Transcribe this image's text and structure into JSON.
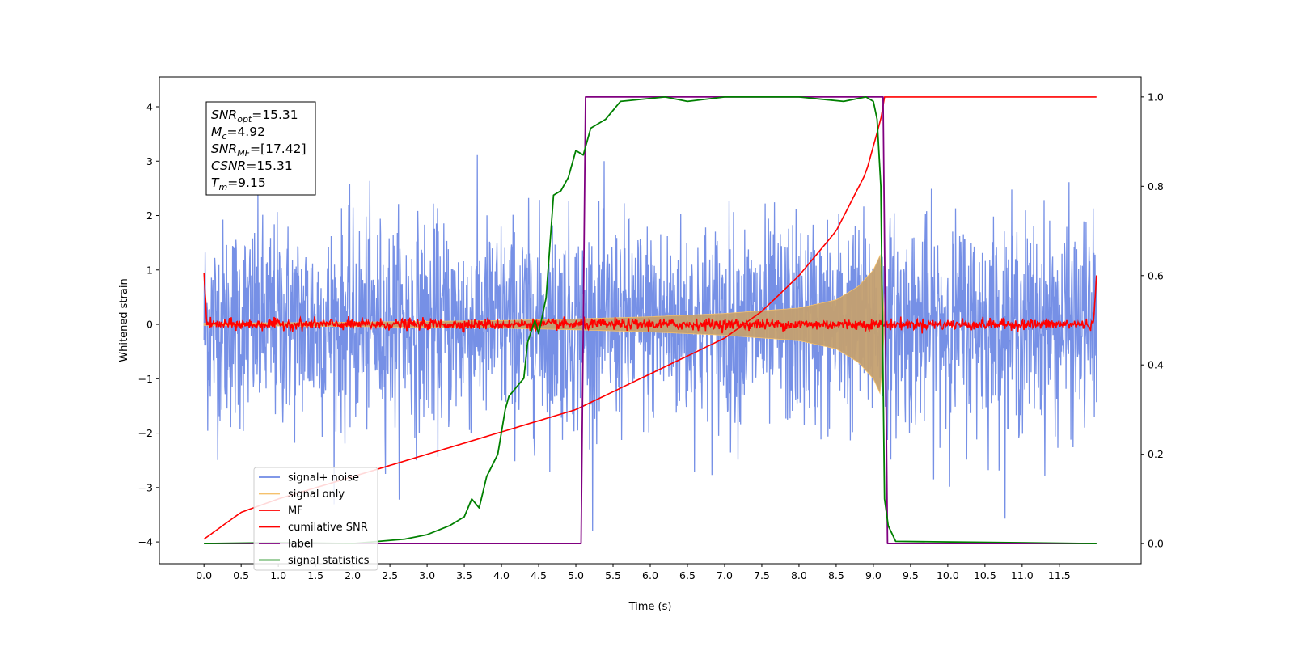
{
  "chart_data": {
    "type": "line",
    "title": "",
    "xlabel": "Time (s)",
    "ylabel": "Whitened strain",
    "x_range": [
      -0.6,
      12.6
    ],
    "xlim": [
      0,
      12
    ],
    "ylim_left": [
      -4.4,
      4.55
    ],
    "ylim_right": [
      -0.045,
      1.045
    ],
    "x_ticks": [
      "0.0",
      "0.5",
      "1.0",
      "1.5",
      "2.0",
      "2.5",
      "3.0",
      "3.5",
      "4.0",
      "4.5",
      "5.0",
      "5.5",
      "6.0",
      "6.5",
      "7.0",
      "7.5",
      "8.0",
      "8.5",
      "9.0",
      "9.5",
      "10.0",
      "10.5",
      "11.0",
      "11.5"
    ],
    "y_ticks_left": [
      "4",
      "3",
      "2",
      "1",
      "0",
      "−1",
      "−2",
      "−3",
      "−4"
    ],
    "y_ticks_right": [
      "1.0",
      "0.8",
      "0.6",
      "0.4",
      "0.2",
      "0.0"
    ],
    "grid": false,
    "legend_position": "lower-left",
    "annotation": {
      "lines": [
        {
          "sym": "SNR",
          "sub": "opt",
          "val": "=15.31"
        },
        {
          "sym": "M",
          "sub": "c",
          "val": "=4.92"
        },
        {
          "sym": "SNR",
          "sub": "MF",
          "val": "=[17.42]"
        },
        {
          "sym": "CSNR",
          "sub": "",
          "val": "=15.31"
        },
        {
          "sym": "T",
          "sub": "m",
          "val": "=9.15"
        }
      ]
    },
    "series": [
      {
        "name": "signal+ noise",
        "axis": "left",
        "color": "#6f8ae5",
        "kind": "noise",
        "amplitude_std": 0.95,
        "x_range": [
          0,
          12
        ],
        "range": [
          -3.8,
          4.2
        ]
      },
      {
        "name": "signal only",
        "axis": "left",
        "color": "#f5c16c",
        "kind": "chirp_envelope",
        "x_range": [
          0,
          9.15
        ],
        "envelope_points": [
          [
            0,
            0.02
          ],
          [
            2,
            0.04
          ],
          [
            4,
            0.07
          ],
          [
            5,
            0.1
          ],
          [
            6,
            0.14
          ],
          [
            7,
            0.2
          ],
          [
            8,
            0.3
          ],
          [
            8.5,
            0.45
          ],
          [
            8.8,
            0.7
          ],
          [
            9.0,
            1.0
          ],
          [
            9.1,
            1.3
          ],
          [
            9.15,
            0.0
          ]
        ]
      },
      {
        "name": "MF",
        "axis": "left",
        "color": "#ff0000",
        "kind": "mf",
        "x_range": [
          0,
          12
        ],
        "start_value": 0.95,
        "end_value": 0.9,
        "baseline": 0.0,
        "jitter": 0.05
      },
      {
        "name": "cumilative SNR",
        "axis": "right",
        "color": "#ff0000",
        "kind": "line",
        "points": [
          [
            0,
            0.01
          ],
          [
            0.5,
            0.07
          ],
          [
            1,
            0.1
          ],
          [
            2,
            0.15
          ],
          [
            3,
            0.2
          ],
          [
            4,
            0.25
          ],
          [
            5,
            0.3
          ],
          [
            6,
            0.38
          ],
          [
            7,
            0.46
          ],
          [
            7.5,
            0.52
          ],
          [
            8,
            0.6
          ],
          [
            8.5,
            0.7
          ],
          [
            8.9,
            0.83
          ],
          [
            9.1,
            0.95
          ],
          [
            9.15,
            1.0
          ],
          [
            12,
            1.0
          ]
        ]
      },
      {
        "name": "label",
        "axis": "right",
        "color": "#800080",
        "kind": "line",
        "points": [
          [
            0,
            0.0
          ],
          [
            5.07,
            0.0
          ],
          [
            5.13,
            1.0
          ],
          [
            9.13,
            1.0
          ],
          [
            9.19,
            0.0
          ],
          [
            12,
            0.0
          ]
        ]
      },
      {
        "name": "signal statistics",
        "axis": "right",
        "color": "#008000",
        "kind": "line",
        "points": [
          [
            0,
            0.0
          ],
          [
            1,
            0.002
          ],
          [
            2,
            0.0
          ],
          [
            2.7,
            0.01
          ],
          [
            3,
            0.02
          ],
          [
            3.3,
            0.04
          ],
          [
            3.5,
            0.06
          ],
          [
            3.6,
            0.1
          ],
          [
            3.7,
            0.08
          ],
          [
            3.8,
            0.15
          ],
          [
            3.95,
            0.2
          ],
          [
            4.05,
            0.3
          ],
          [
            4.1,
            0.33
          ],
          [
            4.2,
            0.35
          ],
          [
            4.3,
            0.37
          ],
          [
            4.35,
            0.45
          ],
          [
            4.45,
            0.5
          ],
          [
            4.5,
            0.47
          ],
          [
            4.6,
            0.55
          ],
          [
            4.7,
            0.78
          ],
          [
            4.8,
            0.79
          ],
          [
            4.9,
            0.82
          ],
          [
            5.0,
            0.88
          ],
          [
            5.1,
            0.87
          ],
          [
            5.2,
            0.93
          ],
          [
            5.4,
            0.95
          ],
          [
            5.6,
            0.99
          ],
          [
            6.2,
            1.0
          ],
          [
            6.5,
            0.99
          ],
          [
            7.0,
            1.0
          ],
          [
            8.0,
            1.0
          ],
          [
            8.6,
            0.99
          ],
          [
            8.9,
            1.0
          ],
          [
            9.0,
            0.99
          ],
          [
            9.05,
            0.95
          ],
          [
            9.1,
            0.8
          ],
          [
            9.15,
            0.1
          ],
          [
            9.2,
            0.04
          ],
          [
            9.3,
            0.005
          ],
          [
            12,
            0.0
          ]
        ]
      }
    ]
  }
}
